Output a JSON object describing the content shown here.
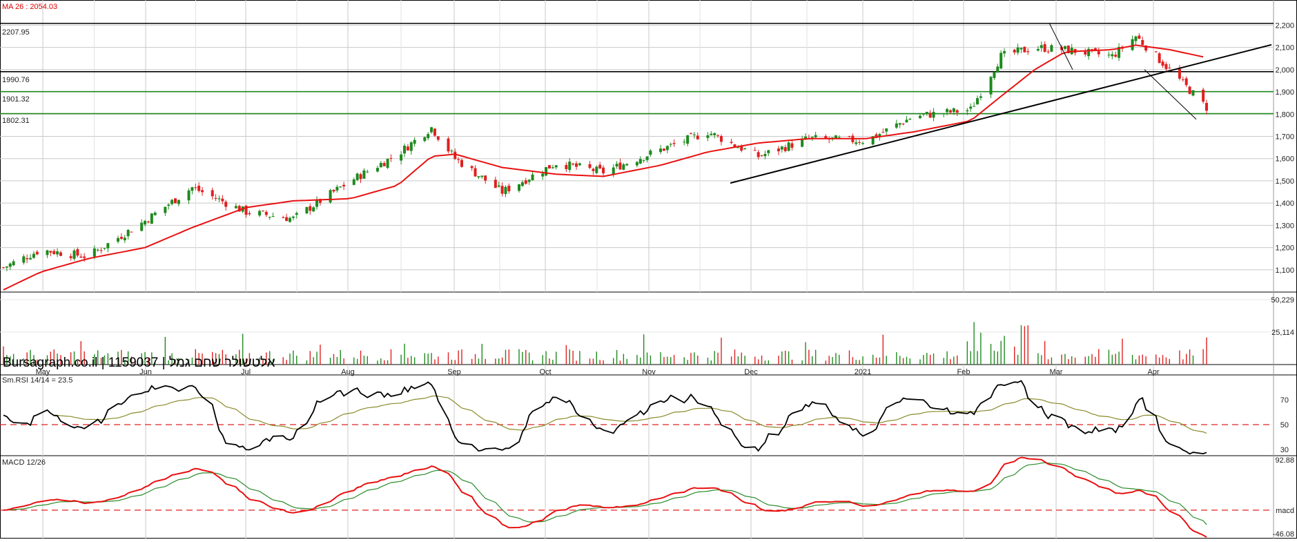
{
  "colors": {
    "up": "#1e8a1e",
    "down": "#e02020",
    "ma": "#e81010",
    "trend": "#000000",
    "rsi": "#000000",
    "rsi_signal": "#8a8a2a",
    "macd": "#e81010",
    "macd_signal": "#2a8a2a",
    "ref_line": "#e02020",
    "support": "#1e8a1e",
    "grid": "#c8c8c8"
  },
  "header": {
    "ma_label": "MA 26 : 2054.03",
    "brand": "Bursagraph.co.il | 1159037 | אלטשולר שחם גמל"
  },
  "level_labels": [
    "2207.95",
    "1990.76",
    "1901.32",
    "1802.31"
  ],
  "month_labels": [
    "May",
    "Jun",
    "Jul",
    "Aug",
    "Sep",
    "Oct",
    "Nov",
    "Dec",
    "2021",
    "Feb",
    "Mar",
    "Apr"
  ],
  "chart_data": [
    {
      "type": "candlestick",
      "panel": "price",
      "y_ticks": [
        "1,100",
        "1,200",
        "1,300",
        "1,400",
        "1,500",
        "1,600",
        "1,700",
        "1,800",
        "1,900",
        "2,000",
        "2,100",
        "2,200"
      ],
      "ylim": [
        1000,
        2220
      ],
      "moving_average": {
        "period": 26,
        "last": 2054.03
      },
      "horizontal_levels": [
        2207.95,
        1990.76,
        1901.32,
        1802.31
      ],
      "series": [
        {
          "name": "close",
          "x": [
            "2020-04-20",
            "2020-05-01",
            "2020-05-15",
            "2020-06-01",
            "2020-06-15",
            "2020-07-01",
            "2020-07-15",
            "2020-08-01",
            "2020-08-15",
            "2020-08-25",
            "2020-09-01",
            "2020-09-15",
            "2020-10-01",
            "2020-10-15",
            "2020-11-01",
            "2020-11-15",
            "2020-11-30",
            "2020-12-15",
            "2021-01-01",
            "2021-01-15",
            "2021-02-01",
            "2021-02-10",
            "2021-02-20",
            "2021-03-01",
            "2021-03-15",
            "2021-03-22",
            "2021-04-01",
            "2021-04-12"
          ],
          "values": [
            1110,
            1190,
            1160,
            1320,
            1470,
            1360,
            1330,
            1500,
            1620,
            1740,
            1600,
            1450,
            1580,
            1540,
            1640,
            1720,
            1610,
            1690,
            1680,
            1790,
            1820,
            2060,
            2100,
            2090,
            2060,
            2150,
            2000,
            1830
          ]
        },
        {
          "name": "MA 26",
          "values": [
            1010,
            1090,
            1150,
            1200,
            1290,
            1380,
            1410,
            1420,
            1480,
            1610,
            1620,
            1560,
            1530,
            1520,
            1570,
            1630,
            1670,
            1690,
            1690,
            1720,
            1770,
            1880,
            2000,
            2080,
            2090,
            2110,
            2090,
            2054
          ]
        }
      ]
    },
    {
      "type": "bar",
      "panel": "volume",
      "y_ticks": [
        "25,114",
        "50,229"
      ],
      "ylim": [
        0,
        56000
      ]
    },
    {
      "type": "line",
      "panel": "rsi",
      "title": "Sm.RSI 14/14 = 23.5",
      "y_ticks": [
        "30",
        "50",
        "70"
      ],
      "ylim": [
        25,
        90
      ],
      "reference": 50
    },
    {
      "type": "line",
      "panel": "macd",
      "title": "MACD 12/26",
      "y_ticks": [
        "92.88",
        "macd",
        "-46.08"
      ],
      "ylim": [
        -46.08,
        92.88
      ]
    }
  ]
}
